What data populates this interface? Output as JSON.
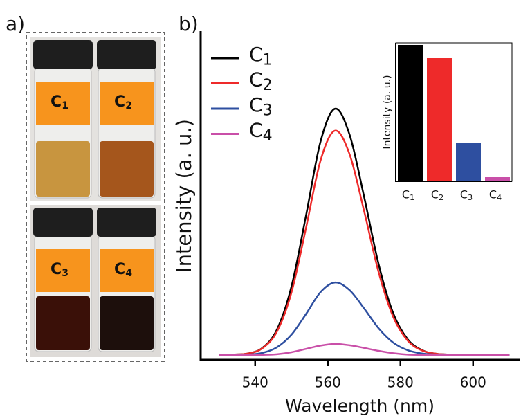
{
  "panel_labels": [
    "a)",
    "b)"
  ],
  "photo": {
    "vial_labels": [
      "C1",
      "C2",
      "C3",
      "C4"
    ]
  },
  "chart_data": [
    {
      "type": "line",
      "x_label": "Wavelength (nm)",
      "y_label": "Intensity (a. u.)",
      "x": [
        530,
        534,
        538,
        542,
        546,
        550,
        554,
        558,
        562,
        566,
        570,
        574,
        578,
        582,
        586,
        590,
        594,
        598,
        602,
        606,
        610
      ],
      "xlim": [
        525,
        613
      ],
      "xticks": [
        540,
        560,
        580,
        600
      ],
      "ylim": [
        0,
        1
      ],
      "legend": "top-left",
      "series": [
        {
          "name": "C1",
          "color": "#000000",
          "values": [
            0.015,
            0.016,
            0.019,
            0.036,
            0.091,
            0.221,
            0.434,
            0.657,
            0.756,
            0.678,
            0.491,
            0.288,
            0.141,
            0.062,
            0.029,
            0.018,
            0.016,
            0.015,
            0.015,
            0.015,
            0.015
          ]
        },
        {
          "name": "C2",
          "color": "#ee2a2a",
          "values": [
            0.015,
            0.016,
            0.019,
            0.035,
            0.085,
            0.203,
            0.397,
            0.6,
            0.69,
            0.619,
            0.448,
            0.264,
            0.13,
            0.058,
            0.028,
            0.018,
            0.016,
            0.015,
            0.015,
            0.015,
            0.015
          ]
        },
        {
          "name": "C3",
          "color": "#2e4fa0",
          "values": [
            0.015,
            0.015,
            0.016,
            0.021,
            0.038,
            0.076,
            0.138,
            0.204,
            0.233,
            0.21,
            0.155,
            0.095,
            0.052,
            0.029,
            0.019,
            0.016,
            0.015,
            0.015,
            0.015,
            0.015,
            0.015
          ]
        },
        {
          "name": "C4",
          "color": "#c94fa8",
          "values": [
            0.014,
            0.014,
            0.014,
            0.015,
            0.017,
            0.023,
            0.033,
            0.043,
            0.048,
            0.044,
            0.036,
            0.027,
            0.02,
            0.016,
            0.015,
            0.014,
            0.014,
            0.014,
            0.014,
            0.014,
            0.014
          ]
        }
      ]
    },
    {
      "type": "bar",
      "y_label": "Intensity (a. u.)",
      "categories": [
        "C1",
        "C2",
        "C3",
        "C4"
      ],
      "values": [
        0.985,
        0.89,
        0.275,
        0.03
      ],
      "colors": [
        "#000000",
        "#ee2a2a",
        "#2e4fa0",
        "#c94fa8"
      ],
      "ylim": [
        0,
        1
      ]
    }
  ]
}
